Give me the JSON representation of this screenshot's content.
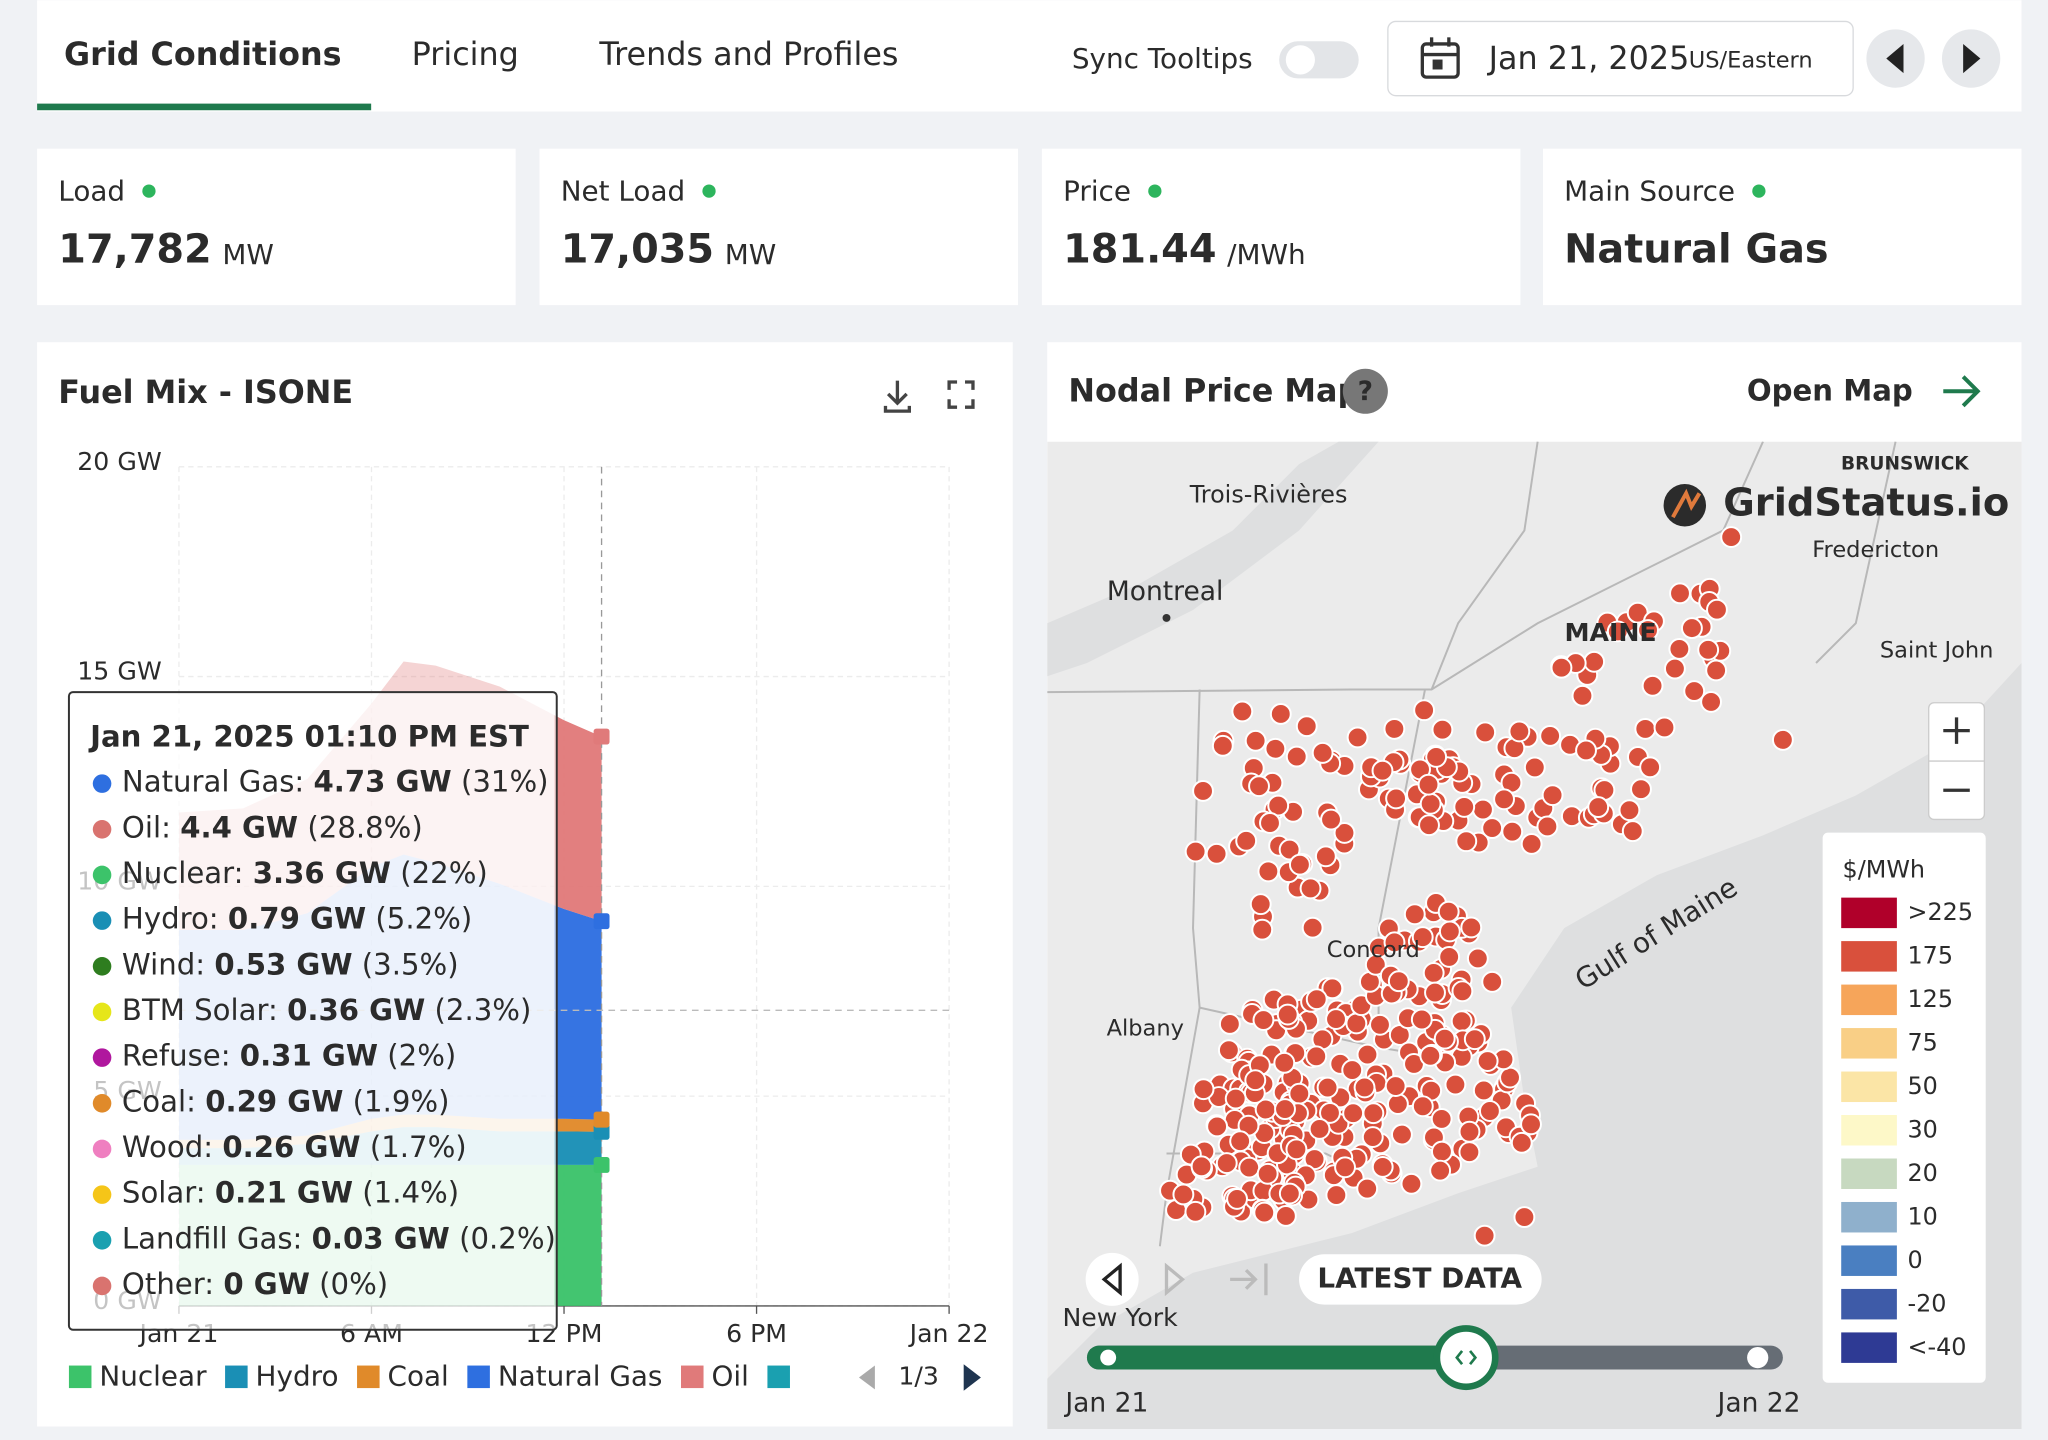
{
  "tabs": [
    "Grid Conditions",
    "Pricing",
    "Trends and Profiles"
  ],
  "sync_tooltips": "Sync Tooltips",
  "date": "Jan 21, 2025",
  "timezone": "US/Eastern",
  "stats": [
    {
      "label": "Load",
      "value": "17,782",
      "unit": "MW"
    },
    {
      "label": "Net Load",
      "value": "17,035",
      "unit": "MW"
    },
    {
      "label": "Price",
      "value": "181.44",
      "unit": "/MWh"
    },
    {
      "label": "Main Source",
      "value": "Natural Gas"
    }
  ],
  "fuel_mix": {
    "title": "Fuel Mix - ISONE",
    "chart_data": {
      "type": "stacked_area",
      "x": [
        0,
        2,
        4,
        6,
        7,
        8,
        10,
        12,
        13.17
      ],
      "xlim": [
        0,
        24
      ],
      "xticks": [
        {
          "value": 0,
          "label": "Jan 21"
        },
        {
          "value": 6,
          "label": "6 AM"
        },
        {
          "value": 12,
          "label": "12 PM"
        },
        {
          "value": 18,
          "label": "6 PM"
        },
        {
          "value": 24,
          "label": "Jan 22"
        }
      ],
      "ylim": [
        0,
        20
      ],
      "yticks": [
        {
          "value": 0,
          "label": "0 GW"
        },
        {
          "value": 5,
          "label": "5 GW"
        },
        {
          "value": 10,
          "label": "10 GW"
        },
        {
          "value": 15,
          "label": "15 GW"
        },
        {
          "value": 20,
          "label": "20 GW"
        }
      ],
      "grid": true,
      "series": [
        {
          "name": "Nuclear",
          "color": "#3cc36a",
          "values": [
            3.36,
            3.36,
            3.36,
            3.36,
            3.36,
            3.36,
            3.36,
            3.36,
            3.36
          ]
        },
        {
          "name": "Hydro",
          "color": "#1a8fb5",
          "values": [
            0.4,
            0.4,
            0.5,
            0.8,
            0.9,
            0.9,
            0.8,
            0.8,
            0.79
          ]
        },
        {
          "name": "Coal",
          "color": "#e08a2a",
          "values": [
            0.2,
            0.2,
            0.2,
            0.3,
            0.3,
            0.3,
            0.3,
            0.3,
            0.29
          ]
        },
        {
          "name": "Natural Gas",
          "color": "#2e6fe0",
          "values": [
            5.0,
            5.0,
            5.3,
            6.0,
            6.2,
            6.0,
            5.6,
            5.0,
            4.73
          ]
        },
        {
          "name": "Oil",
          "color": "#e07a7a",
          "values": [
            2.8,
            2.9,
            3.2,
            3.9,
            4.6,
            4.7,
            4.7,
            4.5,
            4.4
          ]
        }
      ]
    },
    "tooltip": {
      "title": "Jan 21, 2025 01:10 PM EST",
      "rows": [
        {
          "name": "Natural Gas:",
          "value": "4.73 GW",
          "share": "(31%)",
          "color": "#2e6fe0"
        },
        {
          "name": "Oil:",
          "value": "4.4 GW",
          "share": "(28.8%)",
          "color": "#d9736f"
        },
        {
          "name": "Nuclear:",
          "value": "3.36 GW",
          "share": "(22%)",
          "color": "#3cc36a"
        },
        {
          "name": "Hydro:",
          "value": "0.79 GW",
          "share": "(5.2%)",
          "color": "#1a8fb5"
        },
        {
          "name": "Wind:",
          "value": "0.53 GW",
          "share": "(3.5%)",
          "color": "#2e7d1f"
        },
        {
          "name": "BTM Solar:",
          "value": "0.36 GW",
          "share": "(2.3%)",
          "color": "#e6e61a"
        },
        {
          "name": "Refuse:",
          "value": "0.31 GW",
          "share": "(2%)",
          "color": "#b0179e"
        },
        {
          "name": "Coal:",
          "value": "0.29 GW",
          "share": "(1.9%)",
          "color": "#e08a2a"
        },
        {
          "name": "Wood:",
          "value": "0.26 GW",
          "share": "(1.7%)",
          "color": "#ef7fc0"
        },
        {
          "name": "Solar:",
          "value": "0.21 GW",
          "share": "(1.4%)",
          "color": "#f5c518"
        },
        {
          "name": "Landfill Gas:",
          "value": "0.03 GW",
          "share": "(0.2%)",
          "color": "#1aa0b0"
        },
        {
          "name": "Other:",
          "value": "0 GW",
          "share": "(0%)",
          "color": "#d9736f"
        }
      ]
    },
    "legend_page": "1/3"
  },
  "map": {
    "title": "Nodal Price Map",
    "open_map": "Open Map",
    "brand": "GridStatus.io",
    "places": [
      {
        "label": "BRUNSWICK"
      },
      {
        "label": "Trois-Rivières"
      },
      {
        "label": "Montreal"
      },
      {
        "label": "Fredericton"
      },
      {
        "label": "MAINE"
      },
      {
        "label": "Saint John"
      },
      {
        "label": "Gulf of Maine"
      },
      {
        "label": "Albany"
      },
      {
        "label": "Concord"
      },
      {
        "label": "New York"
      }
    ],
    "legend_title": "$/MWh",
    "legend": [
      {
        "label": ">225",
        "color": "#b0002a"
      },
      {
        "label": "175",
        "color": "#d9503c"
      },
      {
        "label": "125",
        "color": "#f6a55a"
      },
      {
        "label": "75",
        "color": "#f9cf86"
      },
      {
        "label": "50",
        "color": "#fbe5a6"
      },
      {
        "label": "30",
        "color": "#fdf8c8"
      },
      {
        "label": "20",
        "color": "#c7d9c0"
      },
      {
        "label": "10",
        "color": "#8fb0cc"
      },
      {
        "label": "0",
        "color": "#4a7fc1"
      },
      {
        "label": "-20",
        "color": "#3e5ba8"
      },
      {
        "label": "<-40",
        "color": "#2e3a94"
      }
    ],
    "latest": "LATEST DATA",
    "slider_start": "Jan 21",
    "slider_end": "Jan 22"
  }
}
